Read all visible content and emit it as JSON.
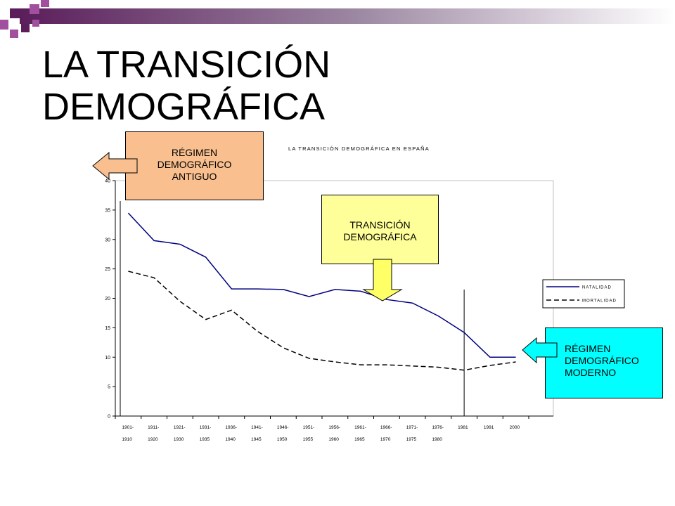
{
  "slide": {
    "title_line1": "LA TRANSICIÓN",
    "title_line2": "DEMOGRÁFICA"
  },
  "colors": {
    "deco_purple": "#5b1e5b",
    "deco_pink": "#a0509e",
    "natalidad": "#000080",
    "mortalidad": "#000000",
    "antiguo_box": "#f9bf8f",
    "transicion_box": "#ffff99",
    "moderno_box": "#00ffff"
  },
  "callouts": {
    "antiguo": [
      "RÉGIMEN",
      "DEMOGRÁFICO",
      "ANTIGUO"
    ],
    "transicion": [
      "TRANSICIÓN",
      "DEMOGRÁFICA"
    ],
    "moderno": [
      "RÉGIMEN",
      "DEMOGRÁFICO",
      "MODERNO"
    ]
  },
  "chart_data": {
    "type": "line",
    "title": "LA TRANSICIÓN DEMOGRÁFICA EN ESPAÑA",
    "ylim": [
      0,
      40
    ],
    "yticks": [
      0,
      5,
      10,
      15,
      20,
      25,
      30,
      35,
      40
    ],
    "grid": false,
    "legend_position": "right",
    "categories": [
      [
        "1901-",
        "1910"
      ],
      [
        "1911-",
        "1920"
      ],
      [
        "1921-",
        "1930"
      ],
      [
        "1931-",
        "1935"
      ],
      [
        "1936-",
        "1940"
      ],
      [
        "1941-",
        "1945"
      ],
      [
        "1946-",
        "1950"
      ],
      [
        "1951-",
        "1955"
      ],
      [
        "1956-",
        "1960"
      ],
      [
        "1961-",
        "1965"
      ],
      [
        "1966-",
        "1970"
      ],
      [
        "1971-",
        "1975"
      ],
      [
        "1976-",
        "1980"
      ],
      [
        "1981",
        ""
      ],
      [
        "1991",
        ""
      ],
      [
        "2000",
        ""
      ]
    ],
    "series": [
      {
        "name": "NATALIDAD",
        "style": "solid",
        "values": [
          34.5,
          29.8,
          29.2,
          27.0,
          21.6,
          21.6,
          21.5,
          20.3,
          21.5,
          21.2,
          19.8,
          19.2,
          17.0,
          14.2,
          10.0,
          10.0
        ]
      },
      {
        "name": "MORTALIDAD",
        "style": "dashed",
        "values": [
          24.6,
          23.5,
          19.5,
          16.4,
          18.0,
          14.4,
          11.6,
          9.8,
          9.2,
          8.7,
          8.7,
          8.5,
          8.3,
          7.8,
          8.6,
          9.2
        ]
      }
    ]
  }
}
